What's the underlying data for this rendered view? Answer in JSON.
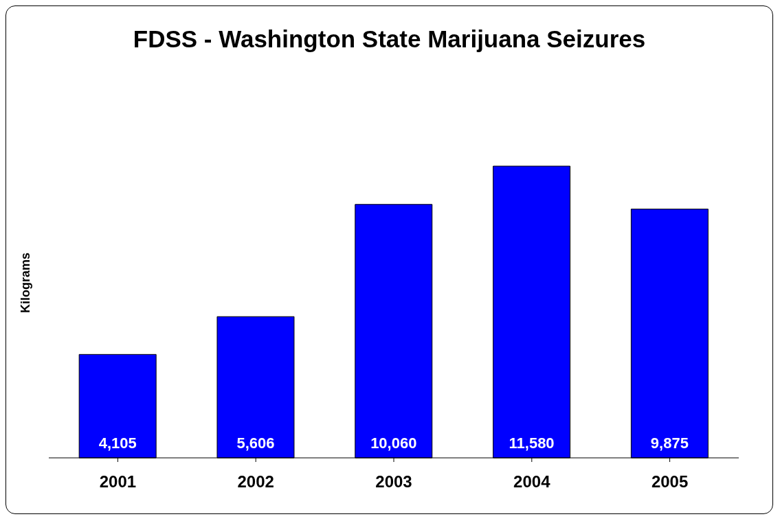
{
  "chart_data": {
    "type": "bar",
    "title": "FDSS - Washington State Marijuana Seizures",
    "ylabel": "Kilograms",
    "categories": [
      "2001",
      "2002",
      "2003",
      "2004",
      "2005"
    ],
    "values": [
      4105,
      5606,
      10060,
      11580,
      9875
    ],
    "value_labels": [
      "4,105",
      "5,606",
      "10,060",
      "11,580",
      "9,875"
    ],
    "color": "#0000ff",
    "grid": false,
    "legend": false
  }
}
